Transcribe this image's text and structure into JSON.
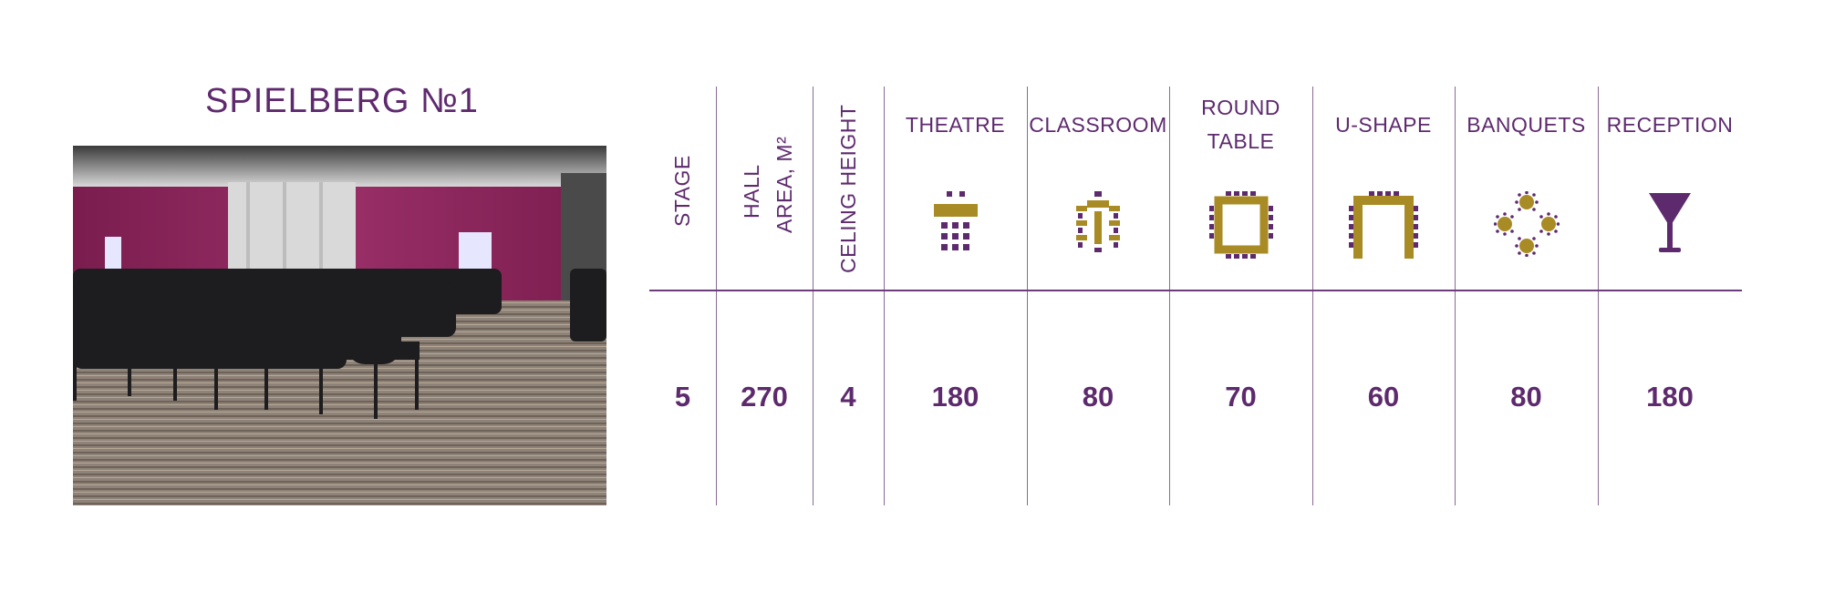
{
  "hall": {
    "title": "SPIELBERG №1"
  },
  "columns": {
    "stage": {
      "label": "STAGE",
      "value": "5"
    },
    "hall_area": {
      "label_line1": "HALL",
      "label_line2": "AREA, M²",
      "value": "270"
    },
    "ceiling_height": {
      "label": "CELING HEIGHT",
      "value": "4"
    },
    "theatre": {
      "label": "THEATRE",
      "value": "180",
      "icon": "theatre-layout-icon"
    },
    "classroom": {
      "label": "CLASSROOM",
      "value": "80",
      "icon": "classroom-layout-icon"
    },
    "round_table": {
      "label_line1": "ROUND",
      "label_line2": "TABLE",
      "value": "70",
      "icon": "round-table-layout-icon"
    },
    "u_shape": {
      "label": "U-SHAPE",
      "value": "60",
      "icon": "u-shape-layout-icon"
    },
    "banquets": {
      "label": "BANQUETS",
      "value": "80",
      "icon": "banquets-layout-icon"
    },
    "reception": {
      "label": "RECEPTION",
      "value": "180",
      "icon": "cocktail-glass-icon"
    }
  },
  "colors": {
    "purple": "#5e2a6e",
    "gold": "#a88b24",
    "line": "#8a6a96"
  }
}
